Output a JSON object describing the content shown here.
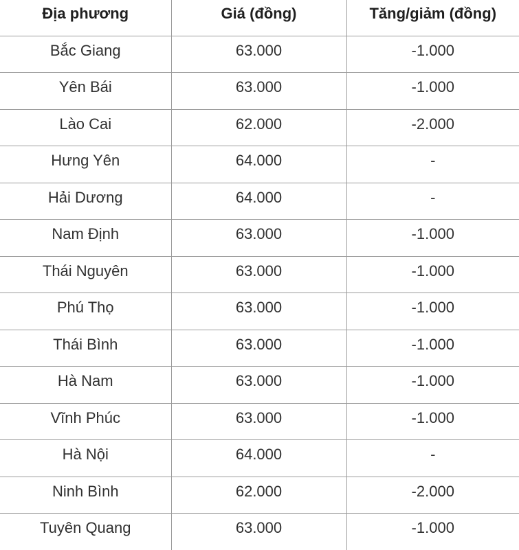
{
  "colors": {
    "border": "#9b9b9b",
    "header_text": "#1f1f1f",
    "cell_text": "#313131",
    "background": "#ffffff"
  },
  "chart_data": {
    "type": "table",
    "title": "",
    "columns": [
      "Địa phương",
      "Giá (đồng)",
      "Tăng/giảm (đồng)"
    ],
    "rows": [
      [
        "Bắc Giang",
        "63.000",
        "-1.000"
      ],
      [
        "Yên Bái",
        "63.000",
        "-1.000"
      ],
      [
        "Lào Cai",
        "62.000",
        "-2.000"
      ],
      [
        "Hưng Yên",
        "64.000",
        "-"
      ],
      [
        "Hải Dương",
        "64.000",
        "-"
      ],
      [
        "Nam Định",
        "63.000",
        "-1.000"
      ],
      [
        "Thái Nguyên",
        "63.000",
        "-1.000"
      ],
      [
        "Phú Thọ",
        "63.000",
        "-1.000"
      ],
      [
        "Thái Bình",
        "63.000",
        "-1.000"
      ],
      [
        "Hà Nam",
        "63.000",
        "-1.000"
      ],
      [
        "Vĩnh Phúc",
        "63.000",
        "-1.000"
      ],
      [
        "Hà Nội",
        "64.000",
        "-"
      ],
      [
        "Ninh Bình",
        "62.000",
        "-2.000"
      ],
      [
        "Tuyên Quang",
        "63.000",
        "-1.000"
      ]
    ]
  }
}
